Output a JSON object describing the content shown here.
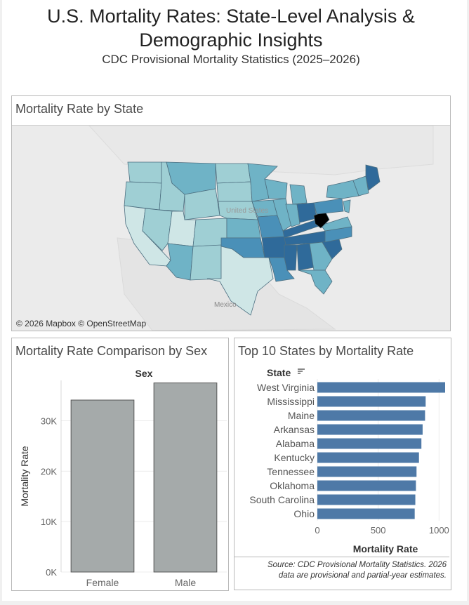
{
  "header": {
    "title_line1": "U.S. Mortality Rates: State-Level Analysis &",
    "title_line2": "Demographic Insights",
    "subtitle": "CDC Provisional Mortality Statistics (2025–2026)"
  },
  "map": {
    "title": "Mortality Rate by State",
    "attribution": "© 2026 Mapbox © OpenStreetMap",
    "labels": {
      "country": "United States",
      "mexico": "Mexico"
    },
    "palette": [
      "#cfe6e6",
      "#9fcfd4",
      "#6fb3c6",
      "#4a90b8",
      "#2f6a9a"
    ]
  },
  "sex_chart": {
    "title": "Mortality Rate Comparison by Sex",
    "chart_data": {
      "type": "bar",
      "header": "Sex",
      "categories": [
        "Female",
        "Male"
      ],
      "values": [
        34100,
        37500
      ],
      "ylabel": "Mortality Rate",
      "ylim": [
        0,
        38000
      ],
      "yticks": [
        0,
        10000,
        20000,
        30000
      ],
      "ytick_labels": [
        "0K",
        "10K",
        "20K",
        "30K"
      ],
      "bar_color": "#a5aaaa",
      "grid": true
    }
  },
  "top_chart": {
    "title": "Top 10 States by Mortality Rate",
    "state_header": "State",
    "chart_data": {
      "type": "bar",
      "orientation": "horizontal",
      "categories": [
        "West Virginia",
        "Mississippi",
        "Maine",
        "Arkansas",
        "Alabama",
        "Kentucky",
        "Tennessee",
        "Oklahoma",
        "South Carolina",
        "Ohio"
      ],
      "values": [
        1050,
        890,
        885,
        865,
        855,
        835,
        815,
        810,
        805,
        800
      ],
      "xlabel": "Mortality Rate",
      "xlim": [
        0,
        1050
      ],
      "xticks": [
        0,
        500,
        1000
      ],
      "bar_color": "#4e79a7",
      "grid": true
    },
    "source_line1": "Source: CDC Provisional Mortality Statistics. 2026",
    "source_line2": "data are provisional and partial-year estimates."
  }
}
